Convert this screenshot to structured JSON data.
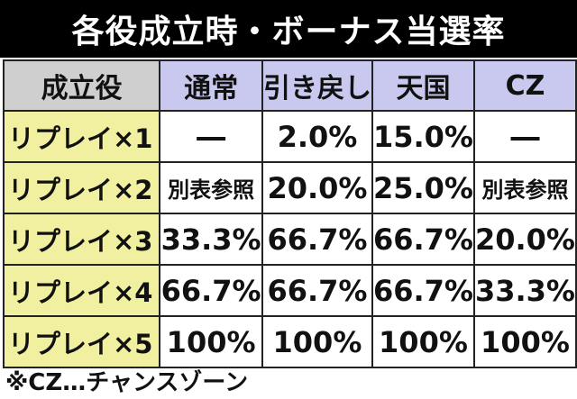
{
  "title": "各役成立時・ボーナス当選率",
  "table": {
    "corner": "成立役",
    "columns": [
      "通常",
      "引き戻し",
      "天国",
      "CZ"
    ],
    "rows": [
      {
        "label": "リプレイ×1",
        "cells": [
          "―",
          "2.0%",
          "15.0%",
          "―"
        ]
      },
      {
        "label": "リプレイ×2",
        "cells": [
          "別表参照",
          "20.0%",
          "25.0%",
          "別表参照"
        ]
      },
      {
        "label": "リプレイ×3",
        "cells": [
          "33.3%",
          "66.7%",
          "66.7%",
          "20.0%"
        ]
      },
      {
        "label": "リプレイ×4",
        "cells": [
          "66.7%",
          "66.7%",
          "66.7%",
          "33.3%"
        ]
      },
      {
        "label": "リプレイ×5",
        "cells": [
          "100%",
          "100%",
          "100%",
          "100%"
        ]
      }
    ]
  },
  "footnote": "※CZ…チャンスゾーン",
  "colors": {
    "title_bg": "#000000",
    "header_bg": "#c9c9ef",
    "corner_bg": "#cfcfcf",
    "rowhead_bg": "#f0f0a0"
  }
}
